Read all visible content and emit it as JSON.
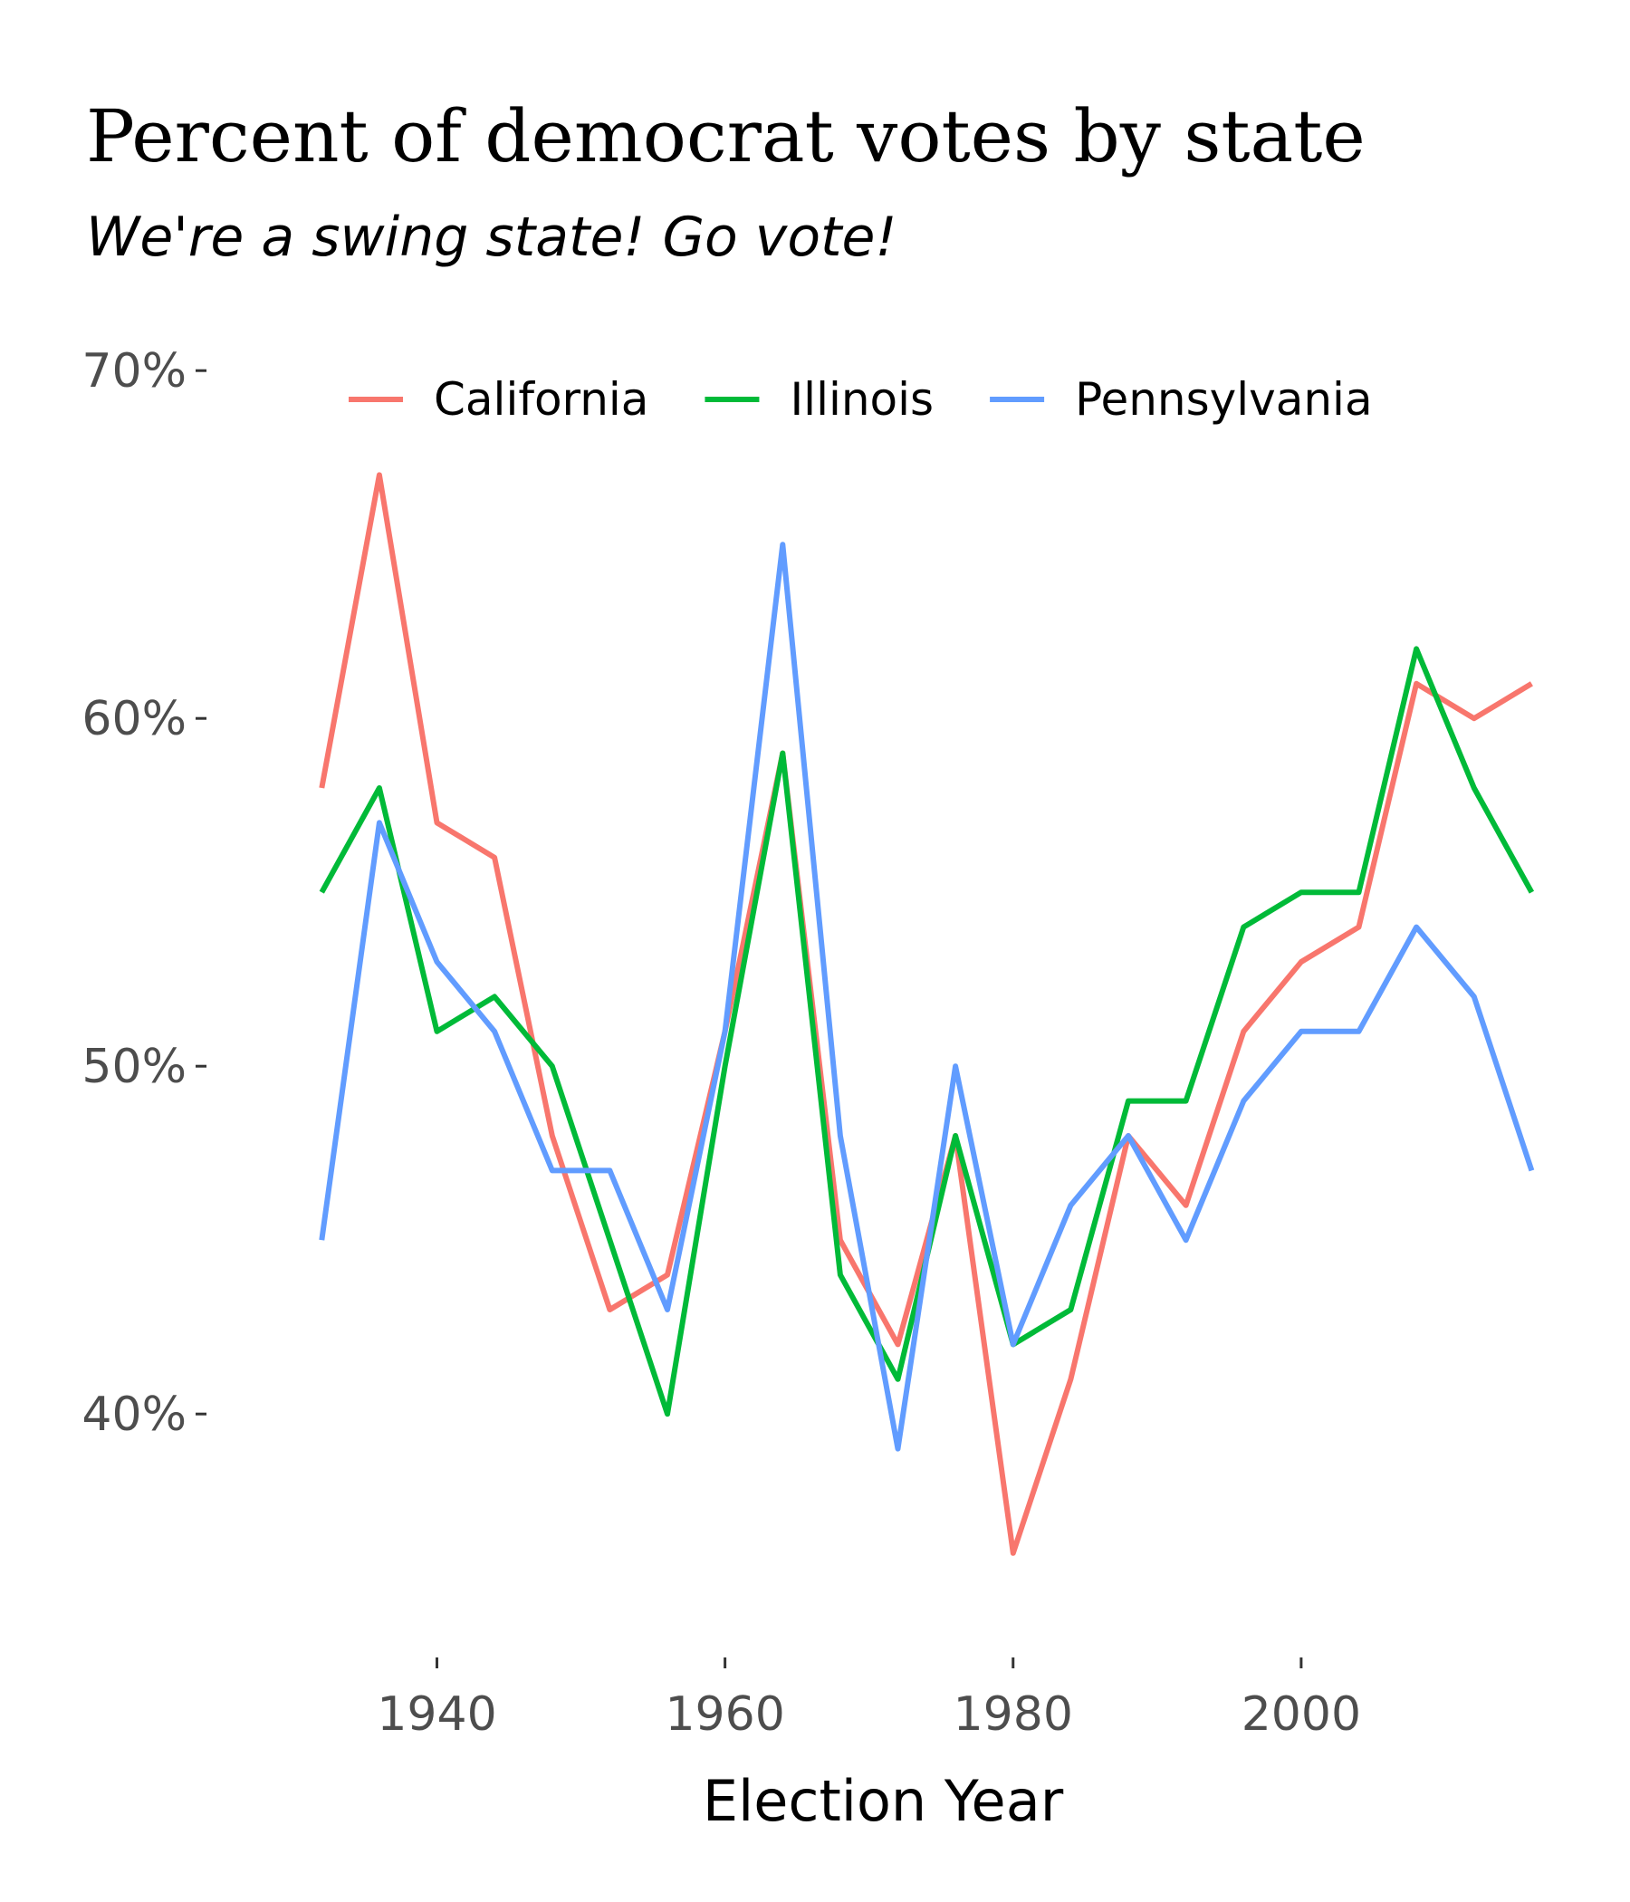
{
  "chart_data": {
    "type": "line",
    "title": "Percent of democrat votes by state",
    "subtitle": "We're a swing state! Go vote!",
    "xlabel": "Election Year",
    "ylabel": "",
    "x": [
      1932,
      1936,
      1940,
      1944,
      1948,
      1952,
      1956,
      1960,
      1964,
      1968,
      1972,
      1976,
      1980,
      1984,
      1988,
      1992,
      1996,
      2000,
      2004,
      2008,
      2012,
      2016
    ],
    "xlim": [
      1924,
      2020
    ],
    "ylim": [
      33,
      70.5
    ],
    "x_ticks": [
      1940,
      1960,
      1980,
      2000
    ],
    "x_tick_labels": [
      "1940",
      "1960",
      "1980",
      "2000"
    ],
    "y_ticks": [
      40,
      50,
      60,
      70
    ],
    "y_tick_labels": [
      "40%",
      "50%",
      "60%",
      "70%"
    ],
    "grid": false,
    "legend_position": "top",
    "series": [
      {
        "name": "California",
        "color": "#F8766D",
        "values": [
          58,
          67,
          57,
          56,
          48,
          43,
          44,
          51,
          59,
          45,
          42,
          48,
          36,
          41,
          48,
          46,
          51,
          53,
          54,
          61,
          60,
          61
        ]
      },
      {
        "name": "Illinois",
        "color": "#00BA38",
        "values": [
          55,
          58,
          51,
          52,
          50,
          45,
          40,
          50,
          59,
          44,
          41,
          48,
          42,
          43,
          49,
          49,
          54,
          55,
          55,
          62,
          58,
          55
        ]
      },
      {
        "name": "Pennsylvania",
        "color": "#619CFF",
        "values": [
          45,
          57,
          53,
          51,
          47,
          47,
          43,
          51,
          65,
          48,
          39,
          50,
          42,
          46,
          48,
          45,
          49,
          51,
          51,
          54,
          52,
          47
        ]
      }
    ]
  }
}
